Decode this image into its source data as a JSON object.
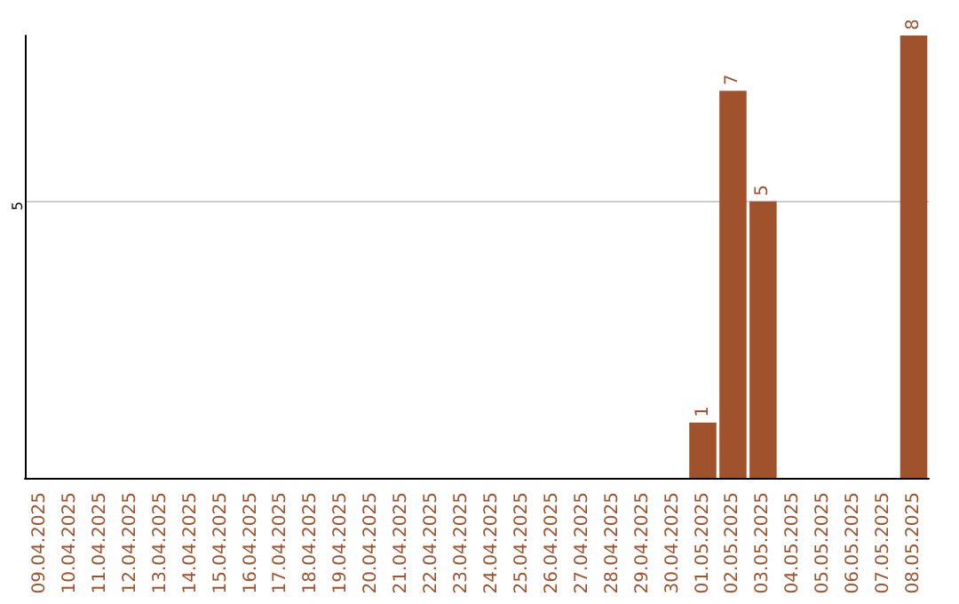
{
  "chart_data": {
    "type": "bar",
    "ylim": [
      0,
      8
    ],
    "categories": [
      "09.04.2025",
      "10.04.2025",
      "11.04.2025",
      "12.04.2025",
      "13.04.2025",
      "14.04.2025",
      "15.04.2025",
      "16.04.2025",
      "17.04.2025",
      "18.04.2025",
      "19.04.2025",
      "20.04.2025",
      "21.04.2025",
      "22.04.2025",
      "23.04.2025",
      "24.04.2025",
      "25.04.2025",
      "26.04.2025",
      "27.04.2025",
      "28.04.2025",
      "29.04.2025",
      "30.04.2025",
      "01.05.2025",
      "02.05.2025",
      "03.05.2025",
      "04.05.2025",
      "05.05.2025",
      "06.05.2025",
      "07.05.2025",
      "08.05.2025"
    ],
    "values": [
      null,
      null,
      null,
      null,
      null,
      null,
      null,
      null,
      null,
      null,
      null,
      null,
      null,
      null,
      null,
      null,
      null,
      null,
      null,
      null,
      null,
      null,
      1,
      7,
      5,
      null,
      null,
      null,
      null,
      8
    ],
    "data_labels": true,
    "color": "#a0522d",
    "ref_lines": [
      {
        "axis": "y",
        "value": 5,
        "label": "5",
        "color": "#cccccc"
      }
    ]
  }
}
